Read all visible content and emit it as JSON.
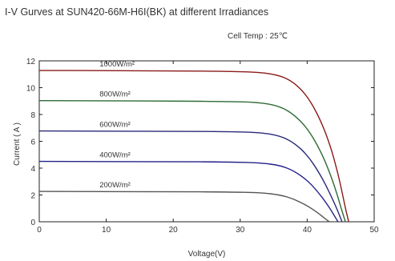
{
  "chart_data": {
    "type": "line",
    "title": "I-V Gurves at SUN420-66M-H6I(BK) at different Irradiances",
    "subtitle": "Cell Temp : 25℃",
    "xlabel": "Voltage(V)",
    "ylabel": "Current ( A )",
    "xlim": [
      0,
      50
    ],
    "ylim": [
      0,
      12
    ],
    "xticks": [
      0,
      10,
      20,
      30,
      40,
      50
    ],
    "yticks": [
      0,
      2,
      4,
      6,
      8,
      10,
      12
    ],
    "grid": false,
    "legend": "none",
    "series": [
      {
        "name": "1000W/m²",
        "color": "#8b1a1a",
        "points": [
          [
            0,
            11.28
          ],
          [
            10,
            11.27
          ],
          [
            20,
            11.25
          ],
          [
            28,
            11.22
          ],
          [
            33,
            11.15
          ],
          [
            36,
            10.9
          ],
          [
            38,
            10.4
          ],
          [
            40,
            9.4
          ],
          [
            42,
            7.6
          ],
          [
            43.5,
            5.6
          ],
          [
            44.5,
            3.8
          ],
          [
            45.3,
            2.0
          ],
          [
            45.8,
            0.8
          ],
          [
            46.2,
            0
          ]
        ]
      },
      {
        "name": "800W/m²",
        "color": "#2e6b35",
        "points": [
          [
            0,
            9.03
          ],
          [
            10,
            9.02
          ],
          [
            20,
            9.0
          ],
          [
            28,
            8.97
          ],
          [
            33,
            8.9
          ],
          [
            36,
            8.6
          ],
          [
            38,
            8.0
          ],
          [
            40,
            7.0
          ],
          [
            42,
            5.3
          ],
          [
            43.5,
            3.5
          ],
          [
            44.5,
            2.0
          ],
          [
            45.2,
            0.8
          ],
          [
            45.7,
            0
          ]
        ]
      },
      {
        "name": "600W/m²",
        "color": "#2a2a7a",
        "points": [
          [
            0,
            6.77
          ],
          [
            10,
            6.76
          ],
          [
            20,
            6.75
          ],
          [
            28,
            6.72
          ],
          [
            33,
            6.66
          ],
          [
            36,
            6.4
          ],
          [
            38,
            5.9
          ],
          [
            40,
            5.0
          ],
          [
            42,
            3.5
          ],
          [
            43.5,
            2.0
          ],
          [
            44.5,
            0.9
          ],
          [
            45.2,
            0
          ]
        ]
      },
      {
        "name": "400W/m²",
        "color": "#23238a",
        "points": [
          [
            0,
            4.5
          ],
          [
            10,
            4.49
          ],
          [
            20,
            4.48
          ],
          [
            28,
            4.46
          ],
          [
            33,
            4.4
          ],
          [
            36,
            4.2
          ],
          [
            38,
            3.8
          ],
          [
            40,
            3.1
          ],
          [
            41.5,
            2.3
          ],
          [
            43,
            1.3
          ],
          [
            44,
            0.5
          ],
          [
            44.6,
            0
          ]
        ]
      },
      {
        "name": "200W/m²",
        "color": "#555555",
        "points": [
          [
            0,
            2.26
          ],
          [
            10,
            2.25
          ],
          [
            20,
            2.24
          ],
          [
            28,
            2.22
          ],
          [
            33,
            2.18
          ],
          [
            36,
            2.0
          ],
          [
            38,
            1.7
          ],
          [
            40,
            1.2
          ],
          [
            41.5,
            0.7
          ],
          [
            42.5,
            0.3
          ],
          [
            43.3,
            0
          ]
        ]
      }
    ]
  }
}
